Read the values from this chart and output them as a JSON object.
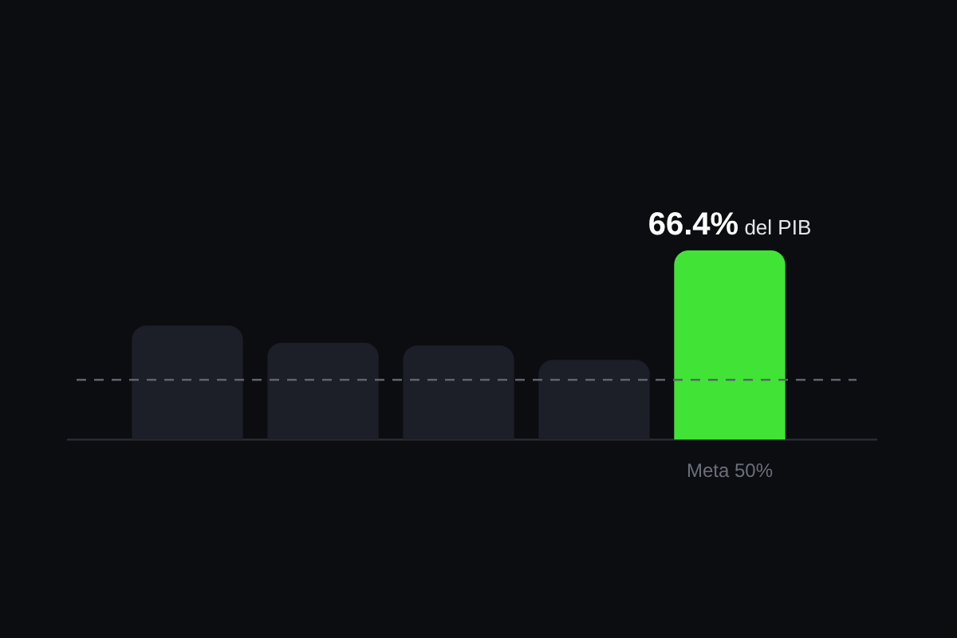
{
  "chart_data": {
    "type": "bar",
    "categories": [
      null,
      null,
      null,
      null,
      "Meta 50%"
    ],
    "values": [
      40,
      34,
      33,
      28,
      66.4
    ],
    "colors": [
      "#1c1f28",
      "#1c1f28",
      "#1c1f28",
      "#1c1f28",
      "#41e336"
    ],
    "value_labels": [
      null,
      null,
      null,
      null,
      "66.4% del PIB"
    ],
    "ref_lines": [
      {
        "axis": "y",
        "value": 21,
        "color": "#5f636e",
        "line_style": "dashed"
      }
    ],
    "legend": false,
    "grid": false,
    "tick_labels": "x"
  }
}
